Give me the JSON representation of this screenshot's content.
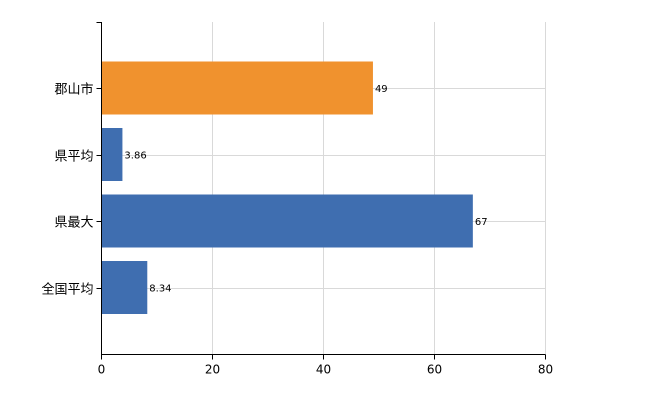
{
  "chart_data": {
    "type": "bar",
    "orientation": "horizontal",
    "categories": [
      "郡山市",
      "県平均",
      "県最大",
      "全国平均"
    ],
    "values": [
      49,
      3.86,
      67,
      8.34
    ],
    "value_labels": [
      "49",
      "3.86",
      "67",
      "8.34"
    ],
    "bar_colors": [
      "#f0922e",
      "#3f6eb0",
      "#3f6eb0",
      "#3f6eb0"
    ],
    "xlim": [
      0,
      80
    ],
    "x_ticks": [
      0,
      20,
      40,
      60,
      80
    ],
    "x_tick_labels": [
      "0",
      "20",
      "40",
      "60",
      "80"
    ],
    "grid": true,
    "legend": "none",
    "title": "",
    "xlabel": "",
    "ylabel": ""
  }
}
